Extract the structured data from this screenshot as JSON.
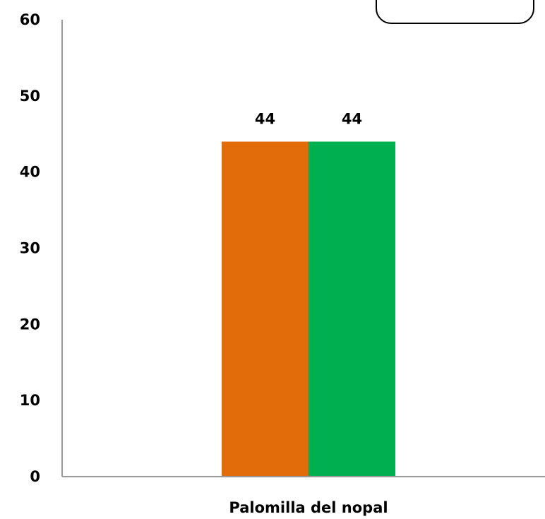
{
  "chart_data": {
    "type": "bar",
    "categories": [
      "Palomilla del nopal"
    ],
    "series": [
      {
        "values": [
          44
        ],
        "color": "#E36C0A"
      },
      {
        "values": [
          44
        ],
        "color": "#00B050"
      }
    ],
    "ylim": [
      0,
      60
    ],
    "yticks": [
      0,
      10,
      20,
      30,
      40,
      50,
      60
    ],
    "grid": false,
    "data_labels": true,
    "legend": "top-right"
  }
}
